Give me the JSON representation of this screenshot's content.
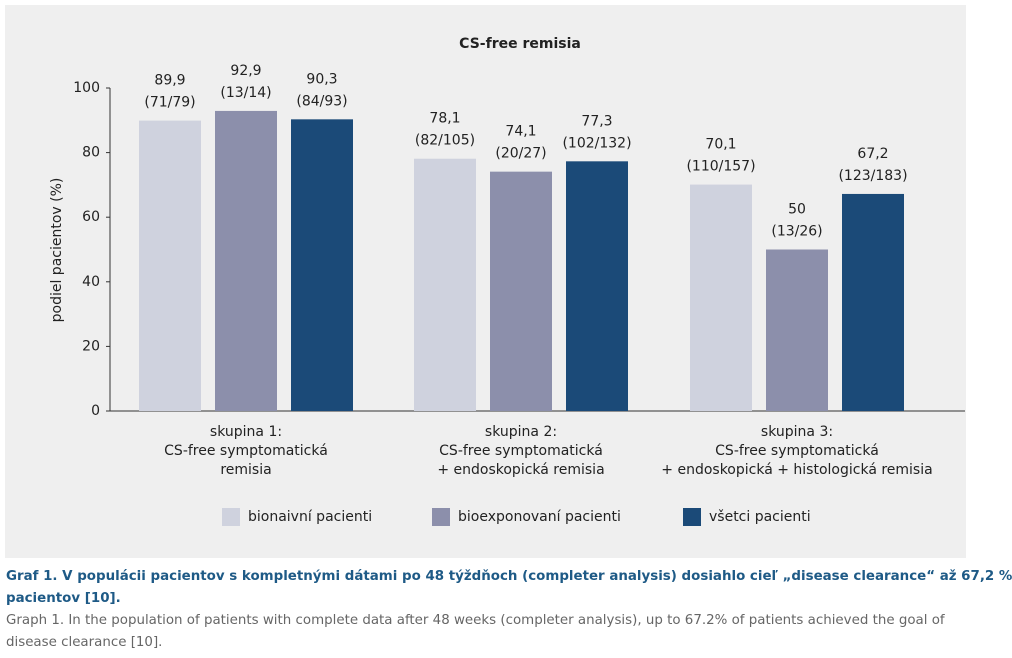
{
  "chart_data": {
    "type": "bar",
    "title": "CS-free remisia",
    "y_label": "podiel pacientov (%)",
    "categories": [
      [
        "skupina 1:",
        "CS-free symptomatická",
        "remisia"
      ],
      [
        "skupina 2:",
        "CS-free symptomatická",
        "+ endoskopická remisia"
      ],
      [
        "skupina 3:",
        "CS-free symptomatická",
        "+ endoskopická + histologická remisia"
      ]
    ],
    "series": [
      {
        "name": "bionaivní pacienti",
        "color": "#cfd2de",
        "values": [
          89.9,
          78.1,
          70.1
        ],
        "value_labels": [
          "89,9",
          "78,1",
          "70,1"
        ],
        "counts": [
          "(71/79)",
          "(82/105)",
          "(110/157)"
        ]
      },
      {
        "name": "bioexponovaní pacienti",
        "color": "#8c8fab",
        "values": [
          92.9,
          74.1,
          50
        ],
        "value_labels": [
          "92,9",
          "74,1",
          "50"
        ],
        "counts": [
          "(13/14)",
          "(20/27)",
          "(13/26)"
        ]
      },
      {
        "name": "všetci pacienti",
        "color": "#1b4a78",
        "values": [
          90.3,
          77.3,
          67.2
        ],
        "value_labels": [
          "90,3",
          "77,3",
          "67,2"
        ],
        "counts": [
          "(84/93)",
          "(102/132)",
          "(123/183)"
        ]
      }
    ],
    "ylim": [
      0,
      100
    ],
    "yticks": [
      0,
      20,
      40,
      60,
      80,
      100
    ],
    "grid": false,
    "legend": "bottom"
  },
  "caption": {
    "title": [
      "Graf 1. V populácii pacientov s kompletnými dátami po 48 týždňoch (completer analysis) dosiahlo cieľ „disease clearance“ až 67,2 %",
      "pacientov [10]."
    ],
    "text": [
      "Graph 1. In the population of patients with complete data after 48 weeks (completer analysis), up to 67.2% of patients achieved the goal of",
      "disease clearance [10]."
    ]
  }
}
